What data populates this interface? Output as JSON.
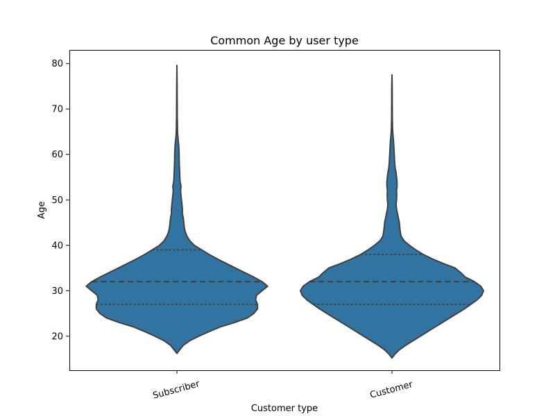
{
  "chart_data": {
    "type": "violin",
    "title": "Common Age by user type",
    "xlabel": "Customer type",
    "ylabel": "Age",
    "categories": [
      "Subscriber",
      "Customer"
    ],
    "ylim": [
      12.5,
      83
    ],
    "yticks": [
      20,
      30,
      40,
      50,
      60,
      70,
      80
    ],
    "fill_color": "#3274a1",
    "edge_color": "#3f3f3f",
    "grid": false,
    "legend": "none",
    "violins": [
      {
        "category": "Subscriber",
        "min": 16.2,
        "max": 79.6,
        "q1": 27,
        "median": 32,
        "q3": 39,
        "density_profile": [
          [
            16.2,
            0.0
          ],
          [
            17,
            0.03
          ],
          [
            18,
            0.07
          ],
          [
            19,
            0.14
          ],
          [
            20,
            0.24
          ],
          [
            21,
            0.35
          ],
          [
            22,
            0.47
          ],
          [
            23,
            0.63
          ],
          [
            24,
            0.77
          ],
          [
            25,
            0.84
          ],
          [
            26,
            0.88
          ],
          [
            27,
            0.88
          ],
          [
            28,
            0.86
          ],
          [
            29,
            0.87
          ],
          [
            30,
            0.93
          ],
          [
            31,
            0.99
          ],
          [
            32,
            0.93
          ],
          [
            33,
            0.84
          ],
          [
            34,
            0.74
          ],
          [
            35,
            0.64
          ],
          [
            36,
            0.54
          ],
          [
            37,
            0.44
          ],
          [
            38,
            0.35
          ],
          [
            39,
            0.27
          ],
          [
            40,
            0.19
          ],
          [
            41,
            0.14
          ],
          [
            42,
            0.11
          ],
          [
            43,
            0.09
          ],
          [
            44,
            0.08
          ],
          [
            45,
            0.075
          ],
          [
            46,
            0.07
          ],
          [
            47,
            0.06
          ],
          [
            48,
            0.06
          ],
          [
            49,
            0.055
          ],
          [
            50,
            0.05
          ],
          [
            51,
            0.045
          ],
          [
            52,
            0.04
          ],
          [
            53,
            0.045
          ],
          [
            54,
            0.035
          ],
          [
            55,
            0.032
          ],
          [
            56,
            0.03
          ],
          [
            57,
            0.028
          ],
          [
            58,
            0.026
          ],
          [
            59,
            0.025
          ],
          [
            60,
            0.024
          ],
          [
            61,
            0.023
          ],
          [
            62,
            0.02
          ],
          [
            63,
            0.015
          ],
          [
            64,
            0.01
          ],
          [
            65,
            0.007
          ],
          [
            66,
            0.006
          ],
          [
            67,
            0.005
          ],
          [
            68,
            0.004
          ],
          [
            70,
            0.004
          ],
          [
            72,
            0.003
          ],
          [
            75,
            0.002
          ],
          [
            78,
            0.001
          ],
          [
            79.6,
            0.0
          ]
        ]
      },
      {
        "category": "Customer",
        "min": 15.2,
        "max": 77.5,
        "q1": 27,
        "median": 32,
        "q3": 38,
        "density_profile": [
          [
            15.2,
            0.0
          ],
          [
            16,
            0.03
          ],
          [
            17,
            0.08
          ],
          [
            18,
            0.15
          ],
          [
            19,
            0.23
          ],
          [
            20,
            0.31
          ],
          [
            21,
            0.39
          ],
          [
            22,
            0.47
          ],
          [
            23,
            0.55
          ],
          [
            24,
            0.63
          ],
          [
            25,
            0.71
          ],
          [
            26,
            0.79
          ],
          [
            27,
            0.86
          ],
          [
            28,
            0.93
          ],
          [
            29,
            0.98
          ],
          [
            30,
            1.0
          ],
          [
            31,
            0.97
          ],
          [
            32,
            0.9
          ],
          [
            33,
            0.8
          ],
          [
            34,
            0.75
          ],
          [
            35,
            0.69
          ],
          [
            36,
            0.56
          ],
          [
            37,
            0.44
          ],
          [
            38,
            0.34
          ],
          [
            39,
            0.26
          ],
          [
            40,
            0.19
          ],
          [
            41,
            0.13
          ],
          [
            42,
            0.1
          ],
          [
            43,
            0.09
          ],
          [
            44,
            0.085
          ],
          [
            45,
            0.08
          ],
          [
            46,
            0.07
          ],
          [
            47,
            0.06
          ],
          [
            48,
            0.05
          ],
          [
            49,
            0.045
          ],
          [
            50,
            0.05
          ],
          [
            51,
            0.052
          ],
          [
            52,
            0.05
          ],
          [
            53,
            0.055
          ],
          [
            54,
            0.055
          ],
          [
            55,
            0.05
          ],
          [
            56,
            0.045
          ],
          [
            57,
            0.035
          ],
          [
            58,
            0.03
          ],
          [
            59,
            0.027
          ],
          [
            60,
            0.025
          ],
          [
            62,
            0.02
          ],
          [
            63,
            0.017
          ],
          [
            64,
            0.012
          ],
          [
            65,
            0.008
          ],
          [
            66,
            0.006
          ],
          [
            67,
            0.005
          ],
          [
            68,
            0.004
          ],
          [
            70,
            0.004
          ],
          [
            72,
            0.003
          ],
          [
            75,
            0.002
          ],
          [
            77.5,
            0.0
          ]
        ]
      }
    ]
  }
}
